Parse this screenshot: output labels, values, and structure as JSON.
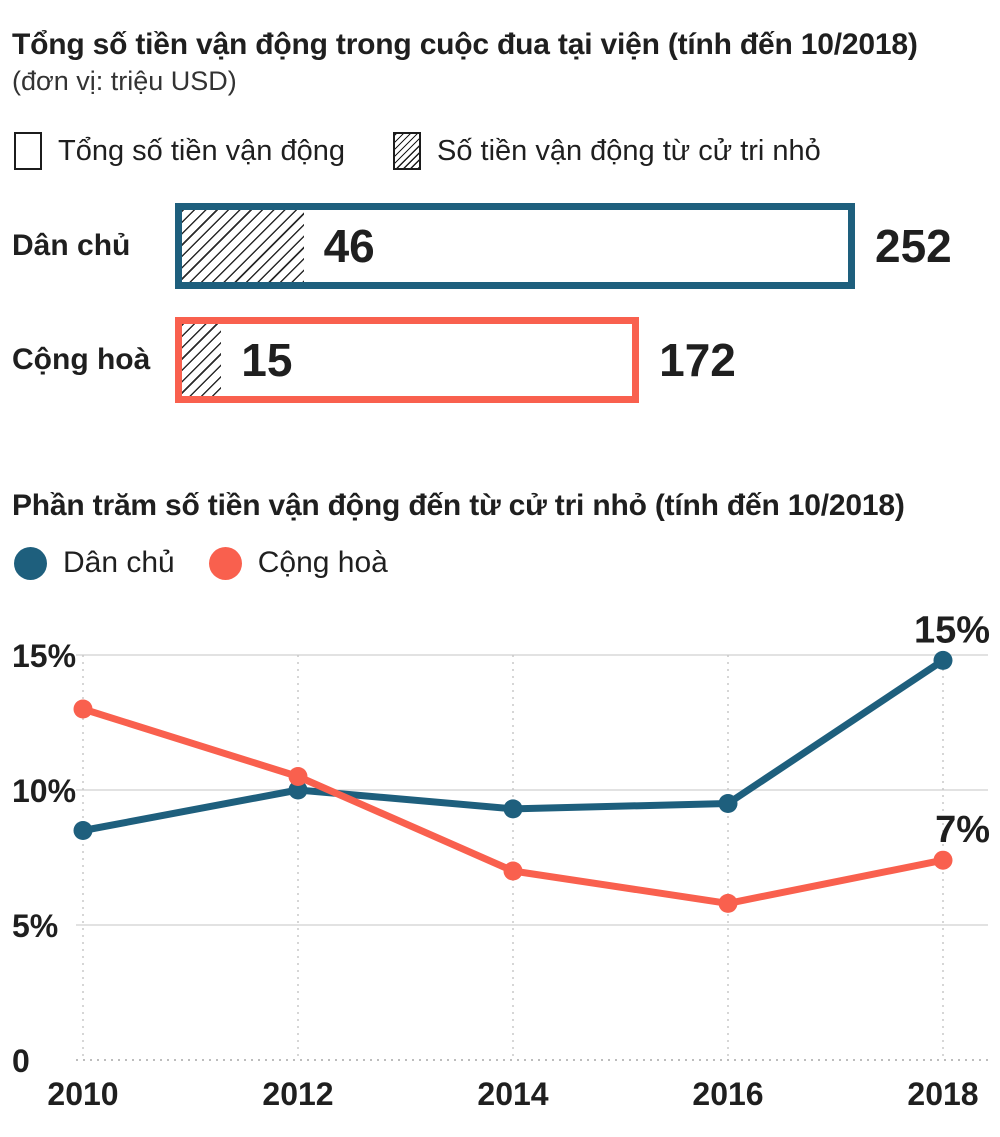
{
  "page": {
    "background": "#ffffff",
    "text_color": "#1f1f1f"
  },
  "chart_data": [
    {
      "type": "bar",
      "orientation": "horizontal",
      "title": "Tổng số tiền vận động trong cuộc đua tại viện (tính đến 10/2018)",
      "subtitle": "(đơn vị: triệu USD)",
      "unit": "triệu USD",
      "legend": [
        {
          "label": "Tổng số tiền vận động",
          "swatch": "outline-box"
        },
        {
          "label": "Số tiền vận động từ cử tri nhỏ",
          "swatch": "hatched-box"
        }
      ],
      "categories": [
        "Dân chủ",
        "Cộng hoà"
      ],
      "series": [
        {
          "name": "Tổng số tiền vận động",
          "values": [
            252,
            172
          ]
        },
        {
          "name": "Số tiền vận động từ cử tri nhỏ",
          "values": [
            46,
            15
          ]
        }
      ],
      "bar_colors": [
        "#1e5f7d",
        "#f9604e"
      ],
      "xlim": [
        0,
        252
      ]
    },
    {
      "type": "line",
      "title": "Phần trăm số tiền vận động đến từ cử tri nhỏ (tính đến 10/2018)",
      "x": [
        2010,
        2012,
        2014,
        2016,
        2018
      ],
      "xticklabels": [
        "2010",
        "2012",
        "2014",
        "2016",
        "2018"
      ],
      "series": [
        {
          "name": "Dân chủ",
          "color": "#1e5f7d",
          "values": [
            8.5,
            10,
            9.3,
            9.5,
            14.8
          ],
          "end_label": "15%"
        },
        {
          "name": "Cộng hoà",
          "color": "#f9604e",
          "values": [
            13,
            10.5,
            7,
            5.8,
            7.4
          ],
          "end_label": "7%"
        }
      ],
      "yticks": [
        15,
        10,
        5,
        0
      ],
      "yticklabels": [
        "15%",
        "10%",
        "5%",
        "0"
      ],
      "ylim": [
        0,
        16.5
      ],
      "grid": true,
      "legend_position": "top-left"
    }
  ]
}
